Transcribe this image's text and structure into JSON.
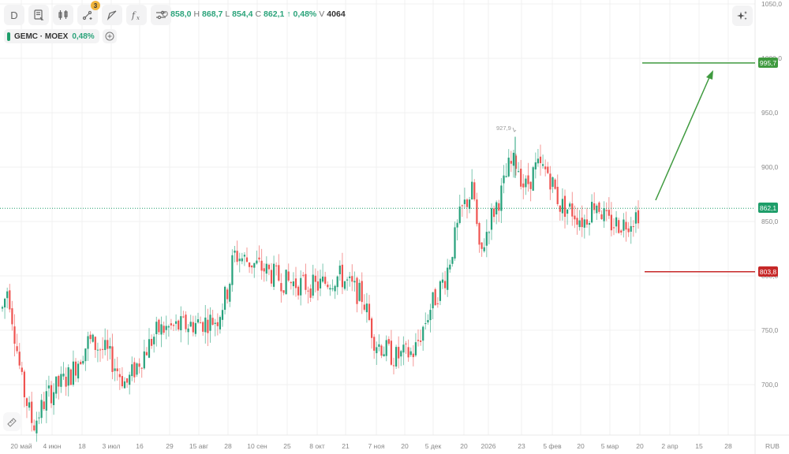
{
  "toolbar": {
    "interval_label": "D",
    "buttons": [
      {
        "name": "interval",
        "icon": "interval-letter-icon"
      },
      {
        "name": "template",
        "icon": "template-icon"
      },
      {
        "name": "chart-type",
        "icon": "candles-icon"
      },
      {
        "name": "drawings",
        "icon": "drawing-tools-icon",
        "badge": "3"
      },
      {
        "name": "shapes",
        "icon": "shape-icon"
      },
      {
        "name": "indicators",
        "icon": "fx-icon"
      },
      {
        "name": "settings",
        "icon": "sliders-icon"
      }
    ],
    "drawings_badge": "3",
    "ai_icon": "sparkles-icon"
  },
  "ohlc": {
    "o_label": "O",
    "o": "858,0",
    "h_label": "H",
    "h": "868,7",
    "l_label": "L",
    "l": "854,4",
    "c_label": "C",
    "c": "862,1",
    "change": "↑ 0,48%",
    "v_label": "V",
    "v": "4064"
  },
  "legend": {
    "symbol": "GEMC · MOEX",
    "change": "0,48%",
    "add_icon": "plus-circle-icon"
  },
  "colors": {
    "up": "#26a17b",
    "down": "#ef5350",
    "target_line": "#3f9a3f",
    "stop_line": "#c62828",
    "last_price_tag": "#1e9e6a",
    "grid": "#f0f0f0"
  },
  "price_tags": {
    "target": "995,7",
    "last": "862,1",
    "stop": "803,8"
  },
  "high_marker": "927,9",
  "currency": "RUB",
  "chart_data": {
    "type": "candlestick",
    "title": "GEMC · MOEX, D",
    "xlabel": "",
    "ylabel": "RUB",
    "ylim": [
      655,
      1050
    ],
    "yticks": [
      "1050,0",
      "1000,0",
      "950,0",
      "900,0",
      "850,0",
      "800,0",
      "750,0",
      "700,0"
    ],
    "xticks": [
      "20 май",
      "4 июн",
      "18",
      "3 июл",
      "16",
      "29",
      "15 авг",
      "28",
      "10 сен",
      "25",
      "8 окт",
      "21",
      "7 ноя",
      "20",
      "5 дек",
      "20",
      "2026",
      "23",
      "5 фев",
      "20",
      "5 мар",
      "20",
      "2 апр",
      "15",
      "28"
    ],
    "grid": true,
    "last_close": 862.1,
    "period_high": 927.9,
    "annotations": {
      "target_level": 995.7,
      "stop_level": 803.8,
      "arrow": {
        "from_price": 867,
        "to_price": 988,
        "direction": "up"
      }
    },
    "series_summary": [
      {
        "period": "mid May 2025",
        "approx_price": 770
      },
      {
        "period": "early Jun 2025 low",
        "approx_price": 660
      },
      {
        "period": "Jul 2025",
        "approx_price": 735
      },
      {
        "period": "Aug 2025",
        "approx_price": 765
      },
      {
        "period": "late Aug 2025 high",
        "approx_price": 825
      },
      {
        "period": "Sep-Oct 2025",
        "approx_price": 800
      },
      {
        "period": "mid Nov 2025 low",
        "approx_price": 720
      },
      {
        "period": "mid Dec 2025",
        "approx_price": 880
      },
      {
        "period": "mid Jan 2026 high",
        "approx_price": 927.9
      },
      {
        "period": "Feb 2026",
        "approx_price": 890
      },
      {
        "period": "Mar 2026",
        "approx_price": 850
      },
      {
        "period": "last",
        "approx_price": 862.1
      }
    ]
  },
  "drawing_tool_icon": "ruler-icon"
}
